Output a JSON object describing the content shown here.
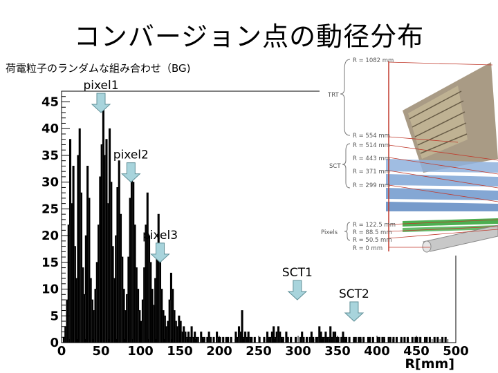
{
  "slide": {
    "title": "コンバージョン点の動径分布",
    "subtitle": "荷電粒子のランダムな組み合わせ（BG)"
  },
  "chart_data": {
    "type": "bar",
    "title": "",
    "xlabel": "R[mm]",
    "ylabel": "",
    "xlim": [
      0,
      500
    ],
    "ylim": [
      0,
      47
    ],
    "x_ticks": [
      0,
      50,
      100,
      150,
      200,
      250,
      300,
      350,
      400,
      450,
      500
    ],
    "y_ticks": [
      0,
      5,
      10,
      15,
      20,
      25,
      30,
      35,
      40,
      45
    ],
    "bin_width_mm": 2,
    "values": [
      0,
      1,
      3,
      8,
      22,
      38,
      26,
      33,
      18,
      12,
      35,
      40,
      28,
      14,
      9,
      20,
      33,
      27,
      12,
      8,
      6,
      10,
      15,
      22,
      31,
      37,
      44,
      35,
      38,
      26,
      40,
      30,
      18,
      12,
      20,
      29,
      34,
      24,
      16,
      10,
      6,
      9,
      16,
      27,
      32,
      30,
      22,
      14,
      10,
      6,
      4,
      8,
      14,
      22,
      28,
      20,
      15,
      10,
      7,
      12,
      18,
      24,
      16,
      10,
      6,
      5,
      3,
      4,
      8,
      13,
      10,
      6,
      4,
      3,
      5,
      4,
      2,
      3,
      2,
      1,
      2,
      1,
      3,
      1,
      2,
      1,
      1,
      0,
      2,
      1,
      1,
      0,
      1,
      2,
      1,
      0,
      1,
      0,
      2,
      1,
      1,
      0,
      1,
      0,
      1,
      1,
      0,
      1,
      0,
      0,
      2,
      1,
      3,
      2,
      6,
      1,
      2,
      1,
      2,
      1,
      1,
      0,
      1,
      0,
      0,
      1,
      0,
      0,
      1,
      0,
      2,
      1,
      1,
      2,
      3,
      1,
      2,
      3,
      2,
      1,
      1,
      0,
      2,
      1,
      0,
      1,
      0,
      0,
      1,
      0,
      0,
      1,
      2,
      1,
      0,
      1,
      0,
      1,
      2,
      1,
      0,
      1,
      1,
      3,
      2,
      1,
      1,
      2,
      1,
      1,
      3,
      1,
      2,
      2,
      1,
      1,
      0,
      1,
      2,
      1,
      1,
      0,
      1,
      0,
      0,
      1,
      1,
      0,
      1,
      1,
      0,
      1,
      0,
      0,
      1,
      1,
      0,
      1,
      0,
      0,
      1,
      1,
      0,
      1,
      1,
      0,
      0,
      1,
      1,
      0,
      1,
      0,
      1,
      0,
      0,
      1,
      0,
      1,
      0,
      1,
      0,
      0,
      1,
      0,
      1,
      1,
      0,
      1,
      0,
      0,
      1,
      1,
      0,
      1,
      0,
      0,
      1,
      0,
      1,
      0,
      0,
      1,
      0,
      1,
      0
    ],
    "annotations": [
      {
        "label": "pixel1",
        "x": 50,
        "y": 43
      },
      {
        "label": "pixel2",
        "x": 88,
        "y": 30
      },
      {
        "label": "pixel3",
        "x": 125,
        "y": 15
      },
      {
        "label": "SCT1",
        "x": 299,
        "y": 8
      },
      {
        "label": "SCT2",
        "x": 371,
        "y": 4
      }
    ]
  },
  "detector": {
    "trt_label": "TRT",
    "sct_label": "SCT",
    "pixels_label": "Pixels",
    "radii": [
      "R = 1082 mm",
      "R = 554 mm",
      "R = 514 mm",
      "R = 443 mm",
      "R = 371 mm",
      "R = 299 mm",
      "R = 122.5 mm",
      "R = 88.5 mm",
      "R = 50.5 mm",
      "R = 0 mm"
    ],
    "colors": {
      "frame": "#c0392b",
      "pixel_layer": "#4caf50",
      "sct_layer": "#7fa6d6",
      "trt_block": "#b8a078"
    }
  }
}
